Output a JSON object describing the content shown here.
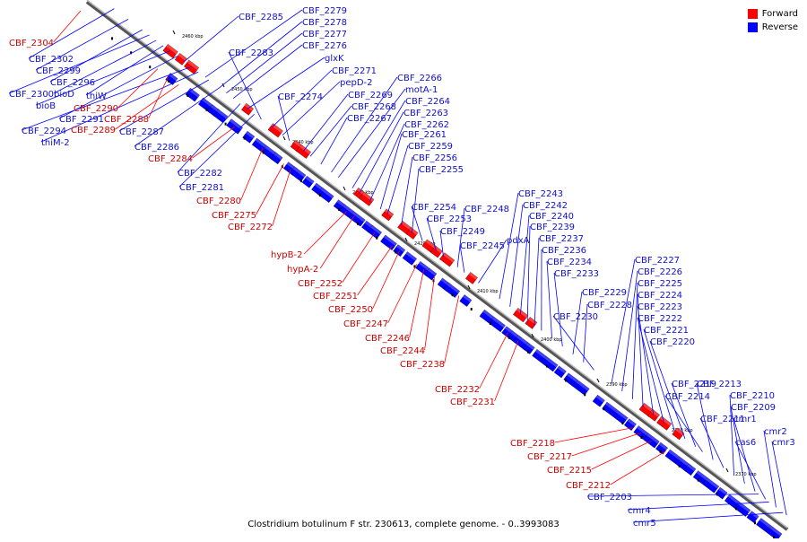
{
  "colors": {
    "forward": "#ff0000",
    "reverse": "#0000ff",
    "backbone": "#666666",
    "label_forward": "#cc0000",
    "label_reverse": "#1010c8"
  },
  "legend": {
    "forward": "Forward",
    "reverse": "Reverse"
  },
  "caption": "Clostridium botulinum F str. 230613, complete genome. - 0..3993083",
  "scale_ticks": [
    "2460 kbp",
    "2450 kbp",
    "2440 kbp",
    "2430 kbp",
    "2420 kbp",
    "2410 kbp",
    "2400 kbp",
    "2390 kbp",
    "2380 kbp",
    "2370 kbp"
  ],
  "reverse_labels": [
    "CBF_2285",
    "CBF_2279",
    "CBF_2278",
    "CBF_2277",
    "CBF_2276",
    "glxK",
    "CBF_2283",
    "CBF_2271",
    "pepD-2",
    "CBF_2274",
    "CBF_2269",
    "CBF_2268",
    "CBF_2267",
    "CBF_2266",
    "motA-1",
    "CBF_2264",
    "CBF_2263",
    "CBF_2262",
    "CBF_2261",
    "CBF_2259",
    "CBF_2256",
    "CBF_2255",
    "CBF_2254",
    "CBF_2253",
    "CBF_2249",
    "CBF_2248",
    "CBF_2245",
    "pdxA",
    "CBF_2243",
    "CBF_2242",
    "CBF_2240",
    "CBF_2239",
    "CBF_2237",
    "CBF_2236",
    "CBF_2234",
    "CBF_2233",
    "CBF_2229",
    "CBF_2228",
    "CBF_2230",
    "CBF_2227",
    "CBF_2226",
    "CBF_2225",
    "CBF_2224",
    "CBF_2223",
    "CBF_2222",
    "CBF_2221",
    "CBF_2220",
    "CBF_2219",
    "CBF_2214",
    "CBF_2213",
    "CBF_2211",
    "CBF_2210",
    "CBF_2209",
    "cmr1",
    "cas6",
    "cmr2",
    "cmr3",
    "CBF_2302",
    "CBF_2299",
    "CBF_2296",
    "CBF_2300",
    "bioD",
    "thiW",
    "bioB",
    "CBF_2291",
    "CBF_2294",
    "thiM-2",
    "CBF_2287",
    "CBF_2286",
    "CBF_2282",
    "CBF_2281",
    "CBF_2203",
    "cmr4",
    "cmr5"
  ],
  "forward_labels": [
    "CBF_2304",
    "CBF_2290",
    "CBF_2288",
    "CBF_2289",
    "CBF_2284",
    "CBF_2280",
    "CBF_2275",
    "CBF_2272",
    "hypB-2",
    "hypA-2",
    "CBF_2252",
    "CBF_2251",
    "CBF_2250",
    "CBF_2247",
    "CBF_2246",
    "CBF_2244",
    "CBF_2238",
    "CBF_2232",
    "CBF_2231",
    "CBF_2218",
    "CBF_2217",
    "CBF_2215",
    "CBF_2212"
  ]
}
